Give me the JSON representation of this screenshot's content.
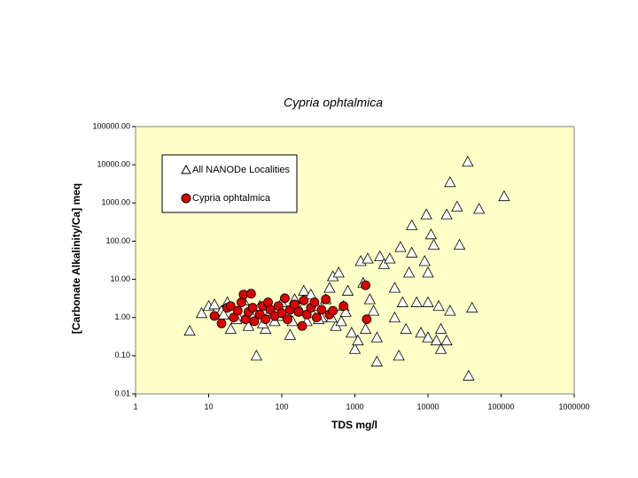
{
  "chart_data": {
    "type": "scatter",
    "title": "Cypria ophtalmica",
    "x_label": "TDS  mg/l",
    "y_label": "[Carbonate Alkalinity/Ca] meq",
    "xscale": "log",
    "yscale": "log",
    "xlim": [
      1,
      1000000
    ],
    "ylim": [
      0.01,
      100000
    ],
    "xticks": [
      1,
      10,
      100,
      1000,
      10000,
      100000,
      1000000
    ],
    "yticks": [
      0.01,
      {
        "value": 0.1,
        "label": "0.10"
      },
      {
        "value": 1,
        "label": "1.00"
      },
      {
        "value": 10,
        "label": "10.00"
      },
      {
        "value": 100,
        "label": "100.00"
      },
      {
        "value": 1000,
        "label": "1000.00"
      },
      {
        "value": 10000,
        "label": "10000.00"
      },
      {
        "value": 100000,
        "label": "100000.00"
      }
    ],
    "grid": false,
    "legend": "upper left",
    "background": "#ffffc8",
    "series": [
      {
        "name": "All NANODe Localities",
        "color": "#ffffff",
        "marker": "triangle",
        "x": [
          5.5,
          8,
          10,
          12,
          15,
          18,
          20,
          25,
          30,
          35,
          45,
          50,
          60,
          70,
          80,
          100,
          120,
          130,
          150,
          180,
          200,
          220,
          250,
          300,
          350,
          400,
          450,
          500,
          550,
          600,
          700,
          800,
          900,
          1000,
          1100,
          1200,
          1300,
          1400,
          1500,
          1600,
          1800,
          2000,
          2000,
          2200,
          2500,
          3000,
          3500,
          3500,
          4000,
          4200,
          4500,
          5000,
          5500,
          6000,
          6000,
          7000,
          8000,
          9000,
          9500,
          10000,
          10000,
          10000,
          11000,
          12000,
          13000,
          14000,
          15000,
          15000,
          18000,
          18000,
          20000,
          20000,
          25000,
          27000,
          35000,
          36000,
          40000,
          50000,
          110000,
          16,
          24,
          40,
          55,
          90,
          140,
          260,
          320,
          480,
          650,
          750
        ],
        "values": [
          0.45,
          1.3,
          2,
          2.2,
          1.5,
          2.5,
          0.5,
          1.1,
          2.8,
          0.6,
          0.1,
          2,
          0.5,
          1.5,
          0.8,
          2.5,
          1.2,
          0.35,
          3,
          1.5,
          5,
          0.8,
          4,
          2,
          1,
          3,
          6,
          12,
          0.6,
          15,
          2,
          5,
          0.4,
          0.15,
          0.25,
          30,
          8,
          0.5,
          35,
          3,
          1.5,
          0.07,
          0.3,
          40,
          25,
          35,
          6,
          1,
          0.1,
          70,
          2.5,
          0.5,
          15,
          260,
          50,
          2.5,
          0.4,
          30,
          500,
          2.5,
          15,
          0.3,
          150,
          80,
          0.25,
          2,
          0.15,
          0.5,
          0.25,
          500,
          3500,
          1.5,
          800,
          80,
          12000,
          0.03,
          1.8,
          700,
          1500,
          1.2,
          0.9,
          1.0,
          0.7,
          1.1,
          0.8,
          1.3,
          0.9,
          1.0,
          0.8,
          1.4
        ]
      },
      {
        "name": "Cypria ophtalmica",
        "color": "#dd0000",
        "marker": "circle",
        "x": [
          12,
          15,
          18,
          20,
          22,
          25,
          28,
          30,
          32,
          35,
          38,
          40,
          42,
          50,
          55,
          60,
          65,
          70,
          80,
          90,
          100,
          110,
          120,
          130,
          150,
          170,
          190,
          200,
          220,
          250,
          280,
          300,
          350,
          400,
          450,
          500,
          700,
          1400,
          1450
        ],
        "values": [
          1.1,
          0.7,
          1.8,
          2,
          1.0,
          1.5,
          2.5,
          4,
          0.9,
          1.4,
          4.2,
          1.8,
          0.8,
          1.2,
          2,
          0.9,
          2.5,
          1.6,
          1.1,
          2,
          1.3,
          3.2,
          0.9,
          1.6,
          2.2,
          1.4,
          0.6,
          2.8,
          1.2,
          1.8,
          2.5,
          1.0,
          1.6,
          3,
          1.2,
          1.5,
          2,
          7,
          0.9
        ]
      }
    ]
  }
}
